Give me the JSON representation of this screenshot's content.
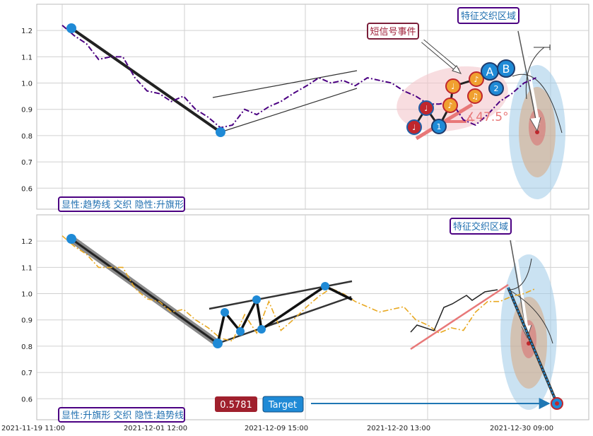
{
  "chart_data": [
    {
      "type": "line",
      "panel": "top",
      "ylim": [
        0.52,
        1.3
      ],
      "yticks": [
        "0.6",
        "0.7",
        "0.8",
        "0.9",
        "1.0",
        "1.1",
        "1.2"
      ],
      "grid": true,
      "series": [
        {
          "style": "dash-dot",
          "color": "#4b0082",
          "x": [
            "2021-11-19 11:00",
            "2021-11-20 11:00",
            "2021-11-21 11:00",
            "2021-11-22 11:00",
            "2021-11-23 11:00",
            "2021-11-24 11:00",
            "2021-11-25 11:00",
            "2021-11-26 11:00",
            "2021-11-27 11:00",
            "2021-11-28 11:00",
            "2021-11-29 11:00",
            "2021-11-30 11:00",
            "2021-12-01 12:00",
            "2021-12-02 12:00",
            "2021-12-03 12:00",
            "2021-12-04 12:00",
            "2021-12-05 12:00",
            "2021-12-06 12:00",
            "2021-12-07 12:00",
            "2021-12-08 12:00",
            "2021-12-09 15:00",
            "2021-12-10 15:00",
            "2021-12-11 15:00",
            "2021-12-12 15:00",
            "2021-12-13 15:00",
            "2021-12-14 15:00",
            "2021-12-15 15:00",
            "2021-12-16 15:00",
            "2021-12-17 15:00",
            "2021-12-18 15:00",
            "2021-12-19 15:00",
            "2021-12-20 13:00",
            "2021-12-21 13:00",
            "2021-12-22 13:00",
            "2021-12-23 13:00",
            "2021-12-24 13:00",
            "2021-12-25 13:00",
            "2021-12-26 13:00",
            "2021-12-27 13:00",
            "2021-12-28 13:00"
          ],
          "values": [
            1.22,
            1.18,
            1.15,
            1.09,
            1.1,
            1.1,
            1.02,
            0.97,
            0.96,
            0.93,
            0.95,
            0.9,
            0.87,
            0.83,
            0.84,
            0.9,
            0.88,
            0.91,
            0.93,
            0.96,
            0.99,
            1.02,
            1.0,
            1.01,
            0.99,
            1.02,
            1.01,
            1.0,
            0.97,
            0.95,
            0.92,
            0.92,
            0.93,
            0.86,
            0.84,
            0.88,
            0.93,
            0.96,
            1.0,
            1.02
          ]
        }
      ],
      "annotations": {
        "left_label": "显性:趋势线 交织 隐性:升旗形",
        "region_label": "特征交织区域",
        "signal_label": "短信号事件",
        "angle_label": "∡47.5°",
        "markers": [
          "A",
          "B",
          "1",
          "2",
          "♩",
          "♪",
          "♫"
        ]
      }
    },
    {
      "type": "line",
      "panel": "bottom",
      "ylim": [
        0.52,
        1.3
      ],
      "yticks": [
        "0.6",
        "0.7",
        "0.8",
        "0.9",
        "1.0",
        "1.1",
        "1.2"
      ],
      "grid": true,
      "series": [
        {
          "style": "dash-dot",
          "color": "#e8a820",
          "x": [
            "2021-11-19 11:00",
            "2021-11-20 11:00",
            "2021-11-21 11:00",
            "2021-11-22 11:00",
            "2021-11-23 11:00",
            "2021-11-24 11:00",
            "2021-11-25 11:00",
            "2021-11-26 11:00",
            "2021-11-27 11:00",
            "2021-11-28 11:00",
            "2021-11-29 11:00",
            "2021-11-30 11:00",
            "2021-12-01 12:00",
            "2021-12-02 12:00",
            "2021-12-03 12:00",
            "2021-12-04 12:00",
            "2021-12-05 12:00",
            "2021-12-06 12:00",
            "2021-12-07 12:00",
            "2021-12-08 12:00",
            "2021-12-09 15:00",
            "2021-12-10 15:00",
            "2021-12-11 15:00",
            "2021-12-12 15:00",
            "2021-12-13 15:00",
            "2021-12-14 15:00",
            "2021-12-15 15:00",
            "2021-12-16 15:00",
            "2021-12-17 15:00",
            "2021-12-18 15:00",
            "2021-12-19 15:00",
            "2021-12-20 13:00",
            "2021-12-21 13:00",
            "2021-12-22 13:00",
            "2021-12-23 13:00",
            "2021-12-24 13:00",
            "2021-12-25 13:00",
            "2021-12-26 13:00",
            "2021-12-27 13:00",
            "2021-12-28 13:00"
          ],
          "values": [
            1.22,
            1.18,
            1.15,
            1.1,
            1.1,
            1.1,
            1.02,
            0.98,
            0.97,
            0.93,
            0.94,
            0.9,
            0.87,
            0.83,
            0.82,
            0.92,
            0.85,
            0.97,
            0.86,
            0.9,
            0.95,
            0.99,
            1.02,
            1.0,
            0.97,
            0.95,
            0.93,
            0.94,
            0.95,
            0.9,
            0.88,
            0.85,
            0.87,
            0.86,
            0.93,
            0.97,
            0.97,
            0.99,
            1.0,
            1.02
          ]
        }
      ],
      "annotations": {
        "left_label": "显性:升旗形 交织 隐性:趋势线",
        "region_label": "特征交织区域",
        "value_badge": "0.5781",
        "target_badge": "Target",
        "target_value": 0.5781
      }
    }
  ],
  "x_axis": {
    "ticks": [
      "2021-11-19 11:00",
      "2021-12-01 12:00",
      "2021-12-09 15:00",
      "2021-12-20 13:00",
      "2021-12-30 09:00"
    ]
  }
}
